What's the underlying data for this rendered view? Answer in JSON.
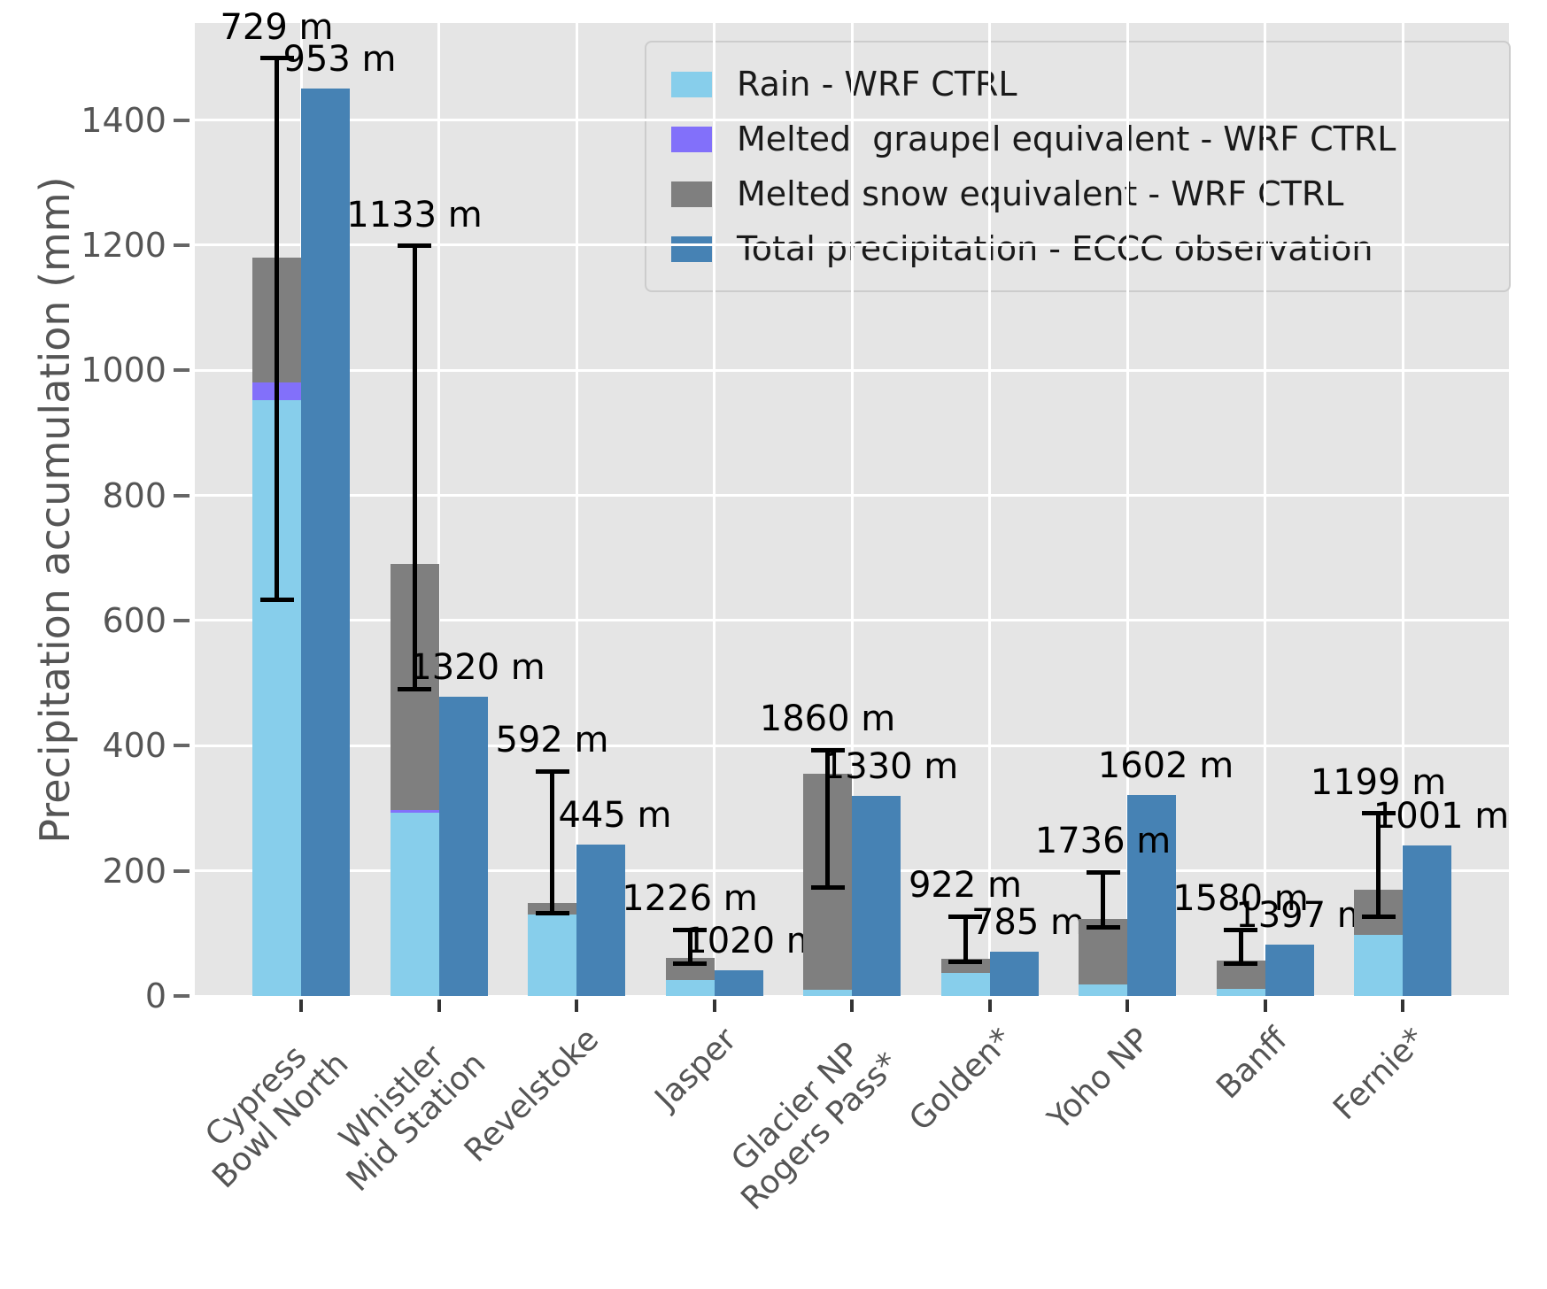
{
  "chart_data": {
    "type": "bar",
    "title": "",
    "ylabel": "Precipitation accumulation (mm)",
    "xlabel": "",
    "ylim": [
      0,
      1555
    ],
    "yticks": [
      0,
      200,
      400,
      600,
      800,
      1000,
      1200,
      1400
    ],
    "grid": "white gridlines on light gray panel (ggplot style)",
    "legend_position": "upper right",
    "bar_mode": "WRF CTRL stacked bar next to ECCC observation bar for each station",
    "categories": [
      "Cypress\nBowl North",
      "Whistler\nMid Station",
      "Revelstoke",
      "Jasper",
      "Glacier NP\nRogers Pass*",
      "Golden*",
      "Yoho NP",
      "Banff",
      "Fernie*"
    ],
    "series": [
      {
        "name": "Rain - WRF CTRL",
        "color": "#87CEEB",
        "stack": "wrf-ctrl",
        "values": [
          952,
          293,
          130,
          25,
          10,
          37,
          18,
          12,
          98
        ]
      },
      {
        "name": "Melted  graupel equivalent - WRF CTRL",
        "color": "#8270FA",
        "stack": "wrf-ctrl",
        "values": [
          29,
          4,
          0,
          0,
          0,
          0,
          0,
          0,
          0
        ]
      },
      {
        "name": "Melted snow equivalent - WRF CTRL",
        "color": "#7F7F7F",
        "stack": "wrf-ctrl",
        "values": [
          199,
          393,
          18,
          36,
          345,
          22,
          105,
          45,
          72
        ]
      },
      {
        "name": "Total precipitation - ECCC observation",
        "color": "#4682B4",
        "stack": "observation",
        "values": [
          1451,
          478,
          242,
          41,
          320,
          71,
          321,
          82,
          240
        ]
      }
    ],
    "wrf_stack_totals": [
      1180,
      690,
      148,
      61,
      355,
      59,
      123,
      57,
      170
    ],
    "error_bars": {
      "attached_to": "WRF CTRL stacked bar",
      "color": "#000000",
      "low": [
        633,
        490,
        133,
        52,
        173,
        54,
        109,
        51,
        127
      ],
      "high": [
        1499,
        1199,
        359,
        106,
        393,
        127,
        198,
        106,
        292
      ]
    },
    "annotations": {
      "wrf_elevation_labels": [
        "729 m",
        "1133 m",
        "592 m",
        "1226 m",
        "1860 m",
        "922 m",
        "1736 m",
        "1580 m",
        "1199 m"
      ],
      "eccc_elevation_labels": [
        "953 m",
        "1320 m",
        "445 m",
        "1020 m",
        "1330 m",
        "785 m",
        "1602 m",
        "1397 m",
        "1001 m"
      ]
    },
    "colors": {
      "panel_background": "#e5e5e5",
      "gridline": "#ffffff",
      "axis_text": "#555555",
      "annotation_text": "#000000",
      "error_bar": "#000000"
    }
  }
}
